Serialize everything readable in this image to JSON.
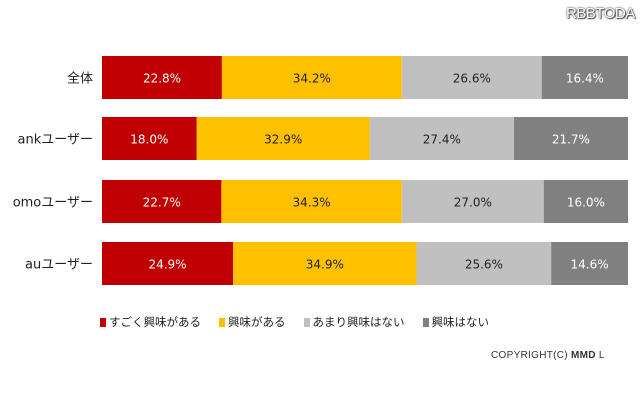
{
  "watermark": "RBBTODA",
  "chart_data": {
    "type": "bar",
    "stacked": true,
    "orientation": "horizontal",
    "categories": [
      "全体",
      "ankユーザー",
      "omoユーザー",
      "auユーザー"
    ],
    "series": [
      {
        "name": "すごく興味がある",
        "color": "#c00000",
        "values": [
          22.8,
          18.0,
          22.7,
          24.9
        ],
        "labels": [
          "22.8%",
          "18.0%",
          "22.7%",
          "24.9%"
        ]
      },
      {
        "name": "興味がある",
        "color": "#ffc000",
        "values": [
          34.2,
          32.9,
          34.3,
          34.9
        ],
        "labels": [
          "34.2%",
          "32.9%",
          "34.3%",
          "34.9%"
        ]
      },
      {
        "name": "あまり興味はない",
        "color": "#c0c0c0",
        "values": [
          26.6,
          27.4,
          27.0,
          25.6
        ],
        "labels": [
          "26.6%",
          "27.4%",
          "27.0%",
          "25.6%"
        ]
      },
      {
        "name": "興味はない",
        "color": "#808080",
        "values": [
          16.4,
          21.7,
          16.0,
          14.6
        ],
        "labels": [
          "16.4%",
          "21.7%",
          "16.0%",
          "14.6%"
        ]
      }
    ],
    "xlim": [
      0,
      100
    ],
    "legend": "bottom",
    "grid": false
  },
  "copyright": {
    "prefix": "COPYRIGHT(C) ",
    "brand": "MMD",
    "suffix": " L"
  }
}
